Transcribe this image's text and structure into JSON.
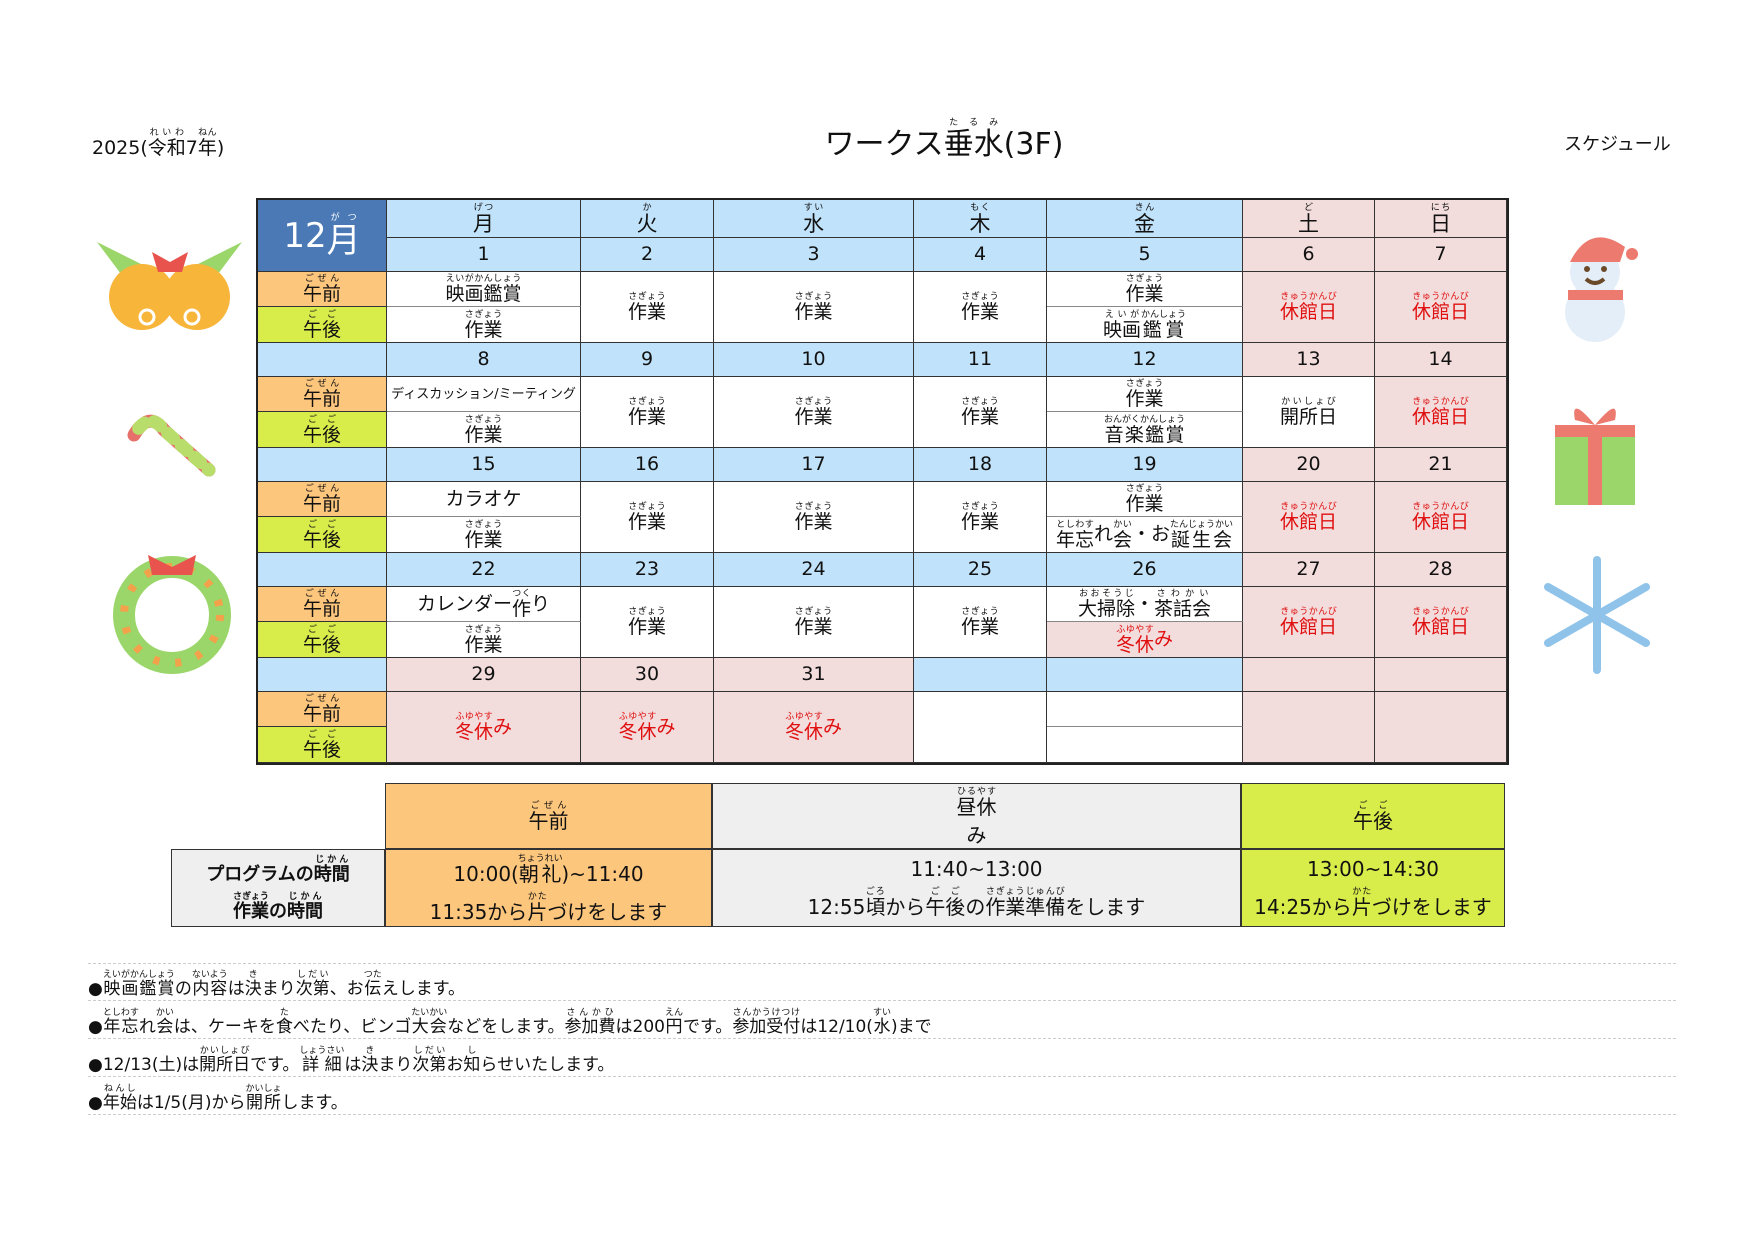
{
  "header": {
    "year": [
      {
        "t": "2025("
      },
      {
        "t": "令和",
        "r": "れいわ"
      },
      {
        "t": "7"
      },
      {
        "t": "年",
        "r": "ねん"
      },
      {
        "t": ")"
      }
    ],
    "title": [
      {
        "t": "ワークス"
      },
      {
        "t": "垂水",
        "r": "たるみ"
      },
      {
        "t": "(3F)"
      }
    ],
    "right_label": "スケジュール"
  },
  "calendar": {
    "month": [
      {
        "t": "12"
      },
      {
        "t": "月",
        "r": "がつ"
      }
    ],
    "weekdays": [
      [
        {
          "t": "月",
          "r": "げつ"
        }
      ],
      [
        {
          "t": "火",
          "r": "か"
        }
      ],
      [
        {
          "t": "水",
          "r": "すい"
        }
      ],
      [
        {
          "t": "木",
          "r": "もく"
        }
      ],
      [
        {
          "t": "金",
          "r": "きん"
        }
      ],
      [
        {
          "t": "土",
          "r": "ど"
        }
      ],
      [
        {
          "t": "日",
          "r": "にち"
        }
      ]
    ],
    "am_label": [
      {
        "t": "午前",
        "r": "ごぜん"
      }
    ],
    "pm_label": [
      {
        "t": "午後",
        "r": "ごご"
      }
    ],
    "weeks": [
      {
        "days": [
          {
            "date": "1",
            "bg": "blue",
            "am": [
              {
                "t": "映画鑑賞",
                "r": "えいがかんしょう"
              }
            ],
            "pm": [
              {
                "t": "作業",
                "r": "さぎょう"
              }
            ],
            "small_am": true
          },
          {
            "date": "2",
            "bg": "blue",
            "full": [
              {
                "t": "作業",
                "r": "さぎょう"
              }
            ]
          },
          {
            "date": "3",
            "bg": "blue",
            "full": [
              {
                "t": "作業",
                "r": "さぎょう"
              }
            ]
          },
          {
            "date": "4",
            "bg": "blue",
            "full": [
              {
                "t": "作業",
                "r": "さぎょう"
              }
            ]
          },
          {
            "date": "5",
            "bg": "blue",
            "am": [
              {
                "t": "作業",
                "r": "さぎょう"
              }
            ],
            "pm": [
              {
                "t": "映画",
                "r": "えいが"
              },
              {
                "t": "鑑賞",
                "r": "かんしょう"
              }
            ]
          },
          {
            "date": "6",
            "bg": "pink",
            "full": [
              {
                "t": "休館日",
                "r": "きゅうかんび"
              }
            ],
            "red": true,
            "cellbg": "pink"
          },
          {
            "date": "7",
            "bg": "pink",
            "full": [
              {
                "t": "休館日",
                "r": "きゅうかんび"
              }
            ],
            "red": true,
            "cellbg": "pink"
          }
        ]
      },
      {
        "days": [
          {
            "date": "8",
            "bg": "blue",
            "am": [
              {
                "t": "ディスカッション/ミーティング"
              }
            ],
            "pm": [
              {
                "t": "作業",
                "r": "さぎょう"
              }
            ],
            "small_am": true
          },
          {
            "date": "9",
            "bg": "blue",
            "full": [
              {
                "t": "作業",
                "r": "さぎょう"
              }
            ]
          },
          {
            "date": "10",
            "bg": "blue",
            "full": [
              {
                "t": "作業",
                "r": "さぎょう"
              }
            ]
          },
          {
            "date": "11",
            "bg": "blue",
            "full": [
              {
                "t": "作業",
                "r": "さぎょう"
              }
            ]
          },
          {
            "date": "12",
            "bg": "blue",
            "am": [
              {
                "t": "作業",
                "r": "さぎょう"
              }
            ],
            "pm": [
              {
                "t": "音楽鑑賞",
                "r": "おんがくかんしょう"
              }
            ]
          },
          {
            "date": "13",
            "bg": "pink",
            "full": [
              {
                "t": "開所日",
                "r": "かいしょび"
              }
            ]
          },
          {
            "date": "14",
            "bg": "pink",
            "full": [
              {
                "t": "休館日",
                "r": "きゅうかんび"
              }
            ],
            "red": true,
            "cellbg": "pink"
          }
        ]
      },
      {
        "days": [
          {
            "date": "15",
            "bg": "blue",
            "am": [
              {
                "t": "カラオケ"
              }
            ],
            "pm": [
              {
                "t": "作業",
                "r": "さぎょう"
              }
            ]
          },
          {
            "date": "16",
            "bg": "blue",
            "full": [
              {
                "t": "作業",
                "r": "さぎょう"
              }
            ]
          },
          {
            "date": "17",
            "bg": "blue",
            "full": [
              {
                "t": "作業",
                "r": "さぎょう"
              }
            ]
          },
          {
            "date": "18",
            "bg": "blue",
            "full": [
              {
                "t": "作業",
                "r": "さぎょう"
              }
            ]
          },
          {
            "date": "19",
            "bg": "blue",
            "am": [
              {
                "t": "作業",
                "r": "さぎょう"
              }
            ],
            "pm": [
              {
                "t": "年忘",
                "r": "としわす"
              },
              {
                "t": "れ"
              },
              {
                "t": "会",
                "r": "かい"
              },
              {
                "t": "・お"
              },
              {
                "t": "誕生会",
                "r": "たんじょうかい"
              }
            ]
          },
          {
            "date": "20",
            "bg": "pink",
            "full": [
              {
                "t": "休館日",
                "r": "きゅうかんび"
              }
            ],
            "red": true,
            "cellbg": "pink"
          },
          {
            "date": "21",
            "bg": "pink",
            "full": [
              {
                "t": "休館日",
                "r": "きゅうかんび"
              }
            ],
            "red": true,
            "cellbg": "pink"
          }
        ]
      },
      {
        "days": [
          {
            "date": "22",
            "bg": "blue",
            "am": [
              {
                "t": "カレンダー"
              },
              {
                "t": "作",
                "r": "つく"
              },
              {
                "t": "り"
              }
            ],
            "pm": [
              {
                "t": "作業",
                "r": "さぎょう"
              }
            ]
          },
          {
            "date": "23",
            "bg": "blue",
            "full": [
              {
                "t": "作業",
                "r": "さぎょう"
              }
            ]
          },
          {
            "date": "24",
            "bg": "blue",
            "full": [
              {
                "t": "作業",
                "r": "さぎょう"
              }
            ]
          },
          {
            "date": "25",
            "bg": "blue",
            "full": [
              {
                "t": "作業",
                "r": "さぎょう"
              }
            ]
          },
          {
            "date": "26",
            "bg": "blue",
            "am": [
              {
                "t": "大掃除",
                "r": "おおそうじ"
              },
              {
                "t": "・"
              },
              {
                "t": "茶話会",
                "r": "さわかい"
              }
            ],
            "pm": [
              {
                "t": "冬休",
                "r": "ふゆやす"
              },
              {
                "t": "み"
              }
            ],
            "pm_red": true
          },
          {
            "date": "27",
            "bg": "pink",
            "full": [
              {
                "t": "休館日",
                "r": "きゅうかんび"
              }
            ],
            "red": true,
            "cellbg": "pink"
          },
          {
            "date": "28",
            "bg": "pink",
            "full": [
              {
                "t": "休館日",
                "r": "きゅうかんび"
              }
            ],
            "red": true,
            "cellbg": "pink"
          }
        ]
      },
      {
        "days": [
          {
            "date": "29",
            "bg": "pink",
            "full": [
              {
                "t": "冬休",
                "r": "ふゆやす"
              },
              {
                "t": "み"
              }
            ],
            "red": true,
            "cellbg": "pink"
          },
          {
            "date": "30",
            "bg": "pink",
            "full": [
              {
                "t": "冬休",
                "r": "ふゆやす"
              },
              {
                "t": "み"
              }
            ],
            "red": true,
            "cellbg": "pink"
          },
          {
            "date": "31",
            "bg": "pink",
            "full": [
              {
                "t": "冬休",
                "r": "ふゆやす"
              },
              {
                "t": "み"
              }
            ],
            "red": true,
            "cellbg": "pink"
          },
          {
            "date": "",
            "bg": "blue",
            "full": []
          },
          {
            "date": "",
            "bg": "blue",
            "am": [],
            "pm": []
          },
          {
            "date": "",
            "bg": "pink",
            "full": [],
            "cellbg": "pink"
          },
          {
            "date": "",
            "bg": "pink",
            "full": [],
            "cellbg": "pink"
          }
        ]
      }
    ]
  },
  "times": {
    "am_header": [
      {
        "t": "午前",
        "r": "ごぜん"
      }
    ],
    "lunch_header": [
      {
        "t": "昼休",
        "r": "ひるやす"
      },
      {
        "t": "み"
      }
    ],
    "pm_header": [
      {
        "t": "午後",
        "r": "ごご"
      }
    ],
    "row_label_1": [
      {
        "t": "プログラムの"
      },
      {
        "t": "時間",
        "r": "じかん"
      }
    ],
    "row_label_2": [
      {
        "t": "作業",
        "r": "さぎょう"
      },
      {
        "t": "の"
      },
      {
        "t": "時間",
        "r": "じかん"
      }
    ],
    "am_1": [
      {
        "t": "10:00("
      },
      {
        "t": "朝礼",
        "r": "ちょうれい"
      },
      {
        "t": ")~11:40"
      }
    ],
    "am_2": [
      {
        "t": "11:35から"
      },
      {
        "t": "片",
        "r": "かた"
      },
      {
        "t": "づけをします"
      }
    ],
    "lunch_1": [
      {
        "t": "11:40~13:00"
      }
    ],
    "lunch_2": [
      {
        "t": "12:55"
      },
      {
        "t": "頃",
        "r": "ごろ"
      },
      {
        "t": "から"
      },
      {
        "t": "午後",
        "r": "ごご"
      },
      {
        "t": "の"
      },
      {
        "t": "作業準備",
        "r": "さぎょうじゅんび"
      },
      {
        "t": "をします"
      }
    ],
    "pm_1": [
      {
        "t": "13:00~14:30"
      }
    ],
    "pm_2": [
      {
        "t": "14:25から"
      },
      {
        "t": "片",
        "r": "かた"
      },
      {
        "t": "づけをします"
      }
    ]
  },
  "notes": [
    [
      {
        "t": "●"
      },
      {
        "t": "映画鑑賞",
        "r": "えいがかんしょう"
      },
      {
        "t": "の"
      },
      {
        "t": "内容",
        "r": "ないよう"
      },
      {
        "t": "は"
      },
      {
        "t": "決",
        "r": "き"
      },
      {
        "t": "まり"
      },
      {
        "t": "次第",
        "r": "しだい"
      },
      {
        "t": "、お"
      },
      {
        "t": "伝",
        "r": "つた"
      },
      {
        "t": "えします。"
      }
    ],
    [
      {
        "t": "●"
      },
      {
        "t": "年忘",
        "r": "としわす"
      },
      {
        "t": "れ"
      },
      {
        "t": "会",
        "r": "かい"
      },
      {
        "t": "は、ケーキを"
      },
      {
        "t": "食",
        "r": "た"
      },
      {
        "t": "べたり、ビンゴ"
      },
      {
        "t": "大会",
        "r": "たいかい"
      },
      {
        "t": "などをします。"
      },
      {
        "t": "参加費",
        "r": "さんかひ"
      },
      {
        "t": "は200"
      },
      {
        "t": "円",
        "r": "えん"
      },
      {
        "t": "です。"
      },
      {
        "t": "参加受付",
        "r": "さんかうけつけ"
      },
      {
        "t": "は12/10("
      },
      {
        "t": "水",
        "r": "すい"
      },
      {
        "t": ")まで"
      }
    ],
    [
      {
        "t": "●12/13(土)は"
      },
      {
        "t": "開所日",
        "r": "かいしょび"
      },
      {
        "t": " です。"
      },
      {
        "t": "詳細",
        "r": "しょうさい"
      },
      {
        "t": "は"
      },
      {
        "t": "決",
        "r": "き"
      },
      {
        "t": "まり"
      },
      {
        "t": "次第",
        "r": "しだい"
      },
      {
        "t": "お"
      },
      {
        "t": "知",
        "r": "し"
      },
      {
        "t": "らせいたします。"
      }
    ],
    [
      {
        "t": "●"
      },
      {
        "t": "年始",
        "r": "ねんし"
      },
      {
        "t": "は1/5(月)から"
      },
      {
        "t": "開所",
        "r": "かいしょ"
      },
      {
        "t": "します。"
      }
    ]
  ],
  "decorations": [
    "bells-icon",
    "candy-cane-icon",
    "wreath-icon",
    "snowman-icon",
    "gift-icon",
    "snowflake-icon"
  ],
  "colors": {
    "weekday_header": "#c0e2fa",
    "weekend": "#f2dcdc",
    "month": "#4a79b6",
    "am": "#fdc67d",
    "pm": "#d8ec4a",
    "holiday_text": "#e01010",
    "lunch": "#efefef"
  }
}
